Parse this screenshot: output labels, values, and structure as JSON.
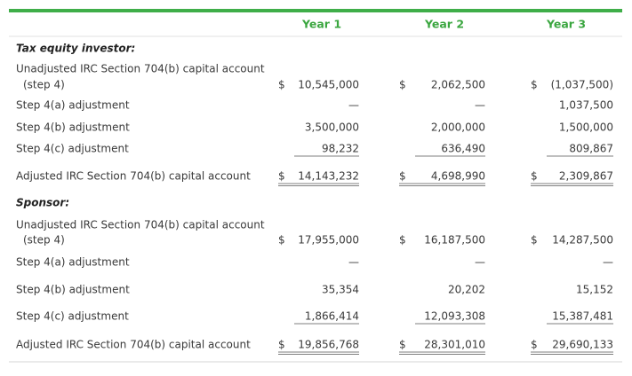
{
  "table": {
    "columns": [
      "Year 1",
      "Year 2",
      "Year 3"
    ],
    "sections": [
      {
        "title": "Tax equity investor:",
        "rows": [
          {
            "label": [
              "Unadjusted IRC Section 704(b) capital account",
              "(step 4)"
            ],
            "cells": [
              {
                "currency": "$",
                "amount": "10,545,000"
              },
              {
                "currency": "$",
                "amount": "2,062,500"
              },
              {
                "currency": "$",
                "amount": "(1,037,500)"
              }
            ]
          },
          {
            "label": [
              "Step 4(a) adjustment"
            ],
            "cells": [
              {
                "amount": "—"
              },
              {
                "amount": "—"
              },
              {
                "amount": "1,037,500"
              }
            ]
          },
          {
            "label": [
              "Step 4(b) adjustment"
            ],
            "cells": [
              {
                "amount": "3,500,000"
              },
              {
                "amount": "2,000,000"
              },
              {
                "amount": "1,500,000"
              }
            ]
          },
          {
            "label": [
              "Step 4(c) adjustment"
            ],
            "cells": [
              {
                "amount": "98,232"
              },
              {
                "amount": "636,490"
              },
              {
                "amount": "809,867"
              }
            ]
          },
          {
            "label": [
              "Adjusted IRC Section 704(b) capital account"
            ],
            "cells": [
              {
                "currency": "$",
                "amount": "14,143,232"
              },
              {
                "currency": "$",
                "amount": "4,698,990"
              },
              {
                "currency": "$",
                "amount": "2,309,867"
              }
            ]
          }
        ]
      },
      {
        "title": "Sponsor:",
        "rows": [
          {
            "label": [
              "Unadjusted IRC Section 704(b) capital account",
              "(step 4)"
            ],
            "cells": [
              {
                "currency": "$",
                "amount": "17,955,000"
              },
              {
                "currency": "$",
                "amount": "16,187,500"
              },
              {
                "currency": "$",
                "amount": "14,287,500"
              }
            ]
          },
          {
            "label": [
              "Step 4(a) adjustment"
            ],
            "cells": [
              {
                "amount": "—"
              },
              {
                "amount": "—"
              },
              {
                "amount": "—"
              }
            ]
          },
          {
            "label": [
              "Step 4(b) adjustment"
            ],
            "cells": [
              {
                "amount": "35,354"
              },
              {
                "amount": "20,202"
              },
              {
                "amount": "15,152"
              }
            ]
          },
          {
            "label": [
              "Step 4(c) adjustment"
            ],
            "cells": [
              {
                "amount": "1,866,414"
              },
              {
                "amount": "12,093,308"
              },
              {
                "amount": "15,387,481"
              }
            ]
          },
          {
            "label": [
              "Adjusted IRC Section 704(b) capital account"
            ],
            "cells": [
              {
                "currency": "$",
                "amount": "19,856,768"
              },
              {
                "currency": "$",
                "amount": "28,301,010"
              },
              {
                "currency": "$",
                "amount": "29,690,133"
              }
            ]
          }
        ]
      }
    ]
  }
}
